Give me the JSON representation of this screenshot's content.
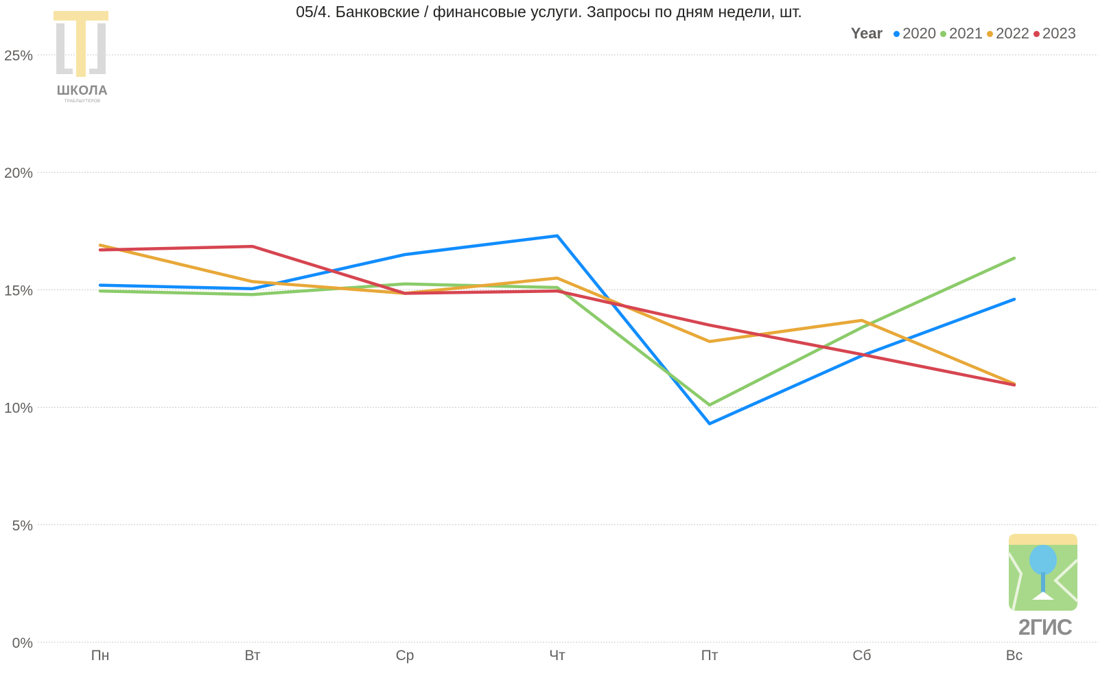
{
  "chart_data": {
    "type": "line",
    "title": "05/4. Банковские / финансовые услуги. Запросы по дням недели, шт.",
    "legend_title": "Year",
    "legend_position": "top-right",
    "categories": [
      "Пн",
      "Вт",
      "Ср",
      "Чт",
      "Пт",
      "Сб",
      "Вс"
    ],
    "ylim": [
      0,
      25
    ],
    "yticks": [
      0,
      5,
      10,
      15,
      20,
      25
    ],
    "ytick_labels": [
      "0%",
      "5%",
      "10%",
      "15%",
      "20%",
      "25%"
    ],
    "grid": true,
    "series": [
      {
        "name": "2020",
        "color": "#118DFF",
        "values": [
          15.2,
          15.05,
          16.5,
          17.3,
          9.3,
          12.2,
          14.6
        ]
      },
      {
        "name": "2021",
        "color": "#8BCB6A",
        "values": [
          14.95,
          14.8,
          15.25,
          15.1,
          10.1,
          13.4,
          16.35
        ]
      },
      {
        "name": "2022",
        "color": "#E8A838",
        "values": [
          16.9,
          15.35,
          14.85,
          15.5,
          12.8,
          13.7,
          11.0
        ]
      },
      {
        "name": "2023",
        "color": "#D64550",
        "values": [
          16.7,
          16.85,
          14.85,
          14.95,
          13.5,
          12.25,
          10.95
        ]
      }
    ]
  },
  "logos": {
    "left": {
      "title": "ШКОЛА",
      "subtitle": "ТРАБЛШУТЕРОВ"
    },
    "right": {
      "title": "2ГИС"
    }
  }
}
